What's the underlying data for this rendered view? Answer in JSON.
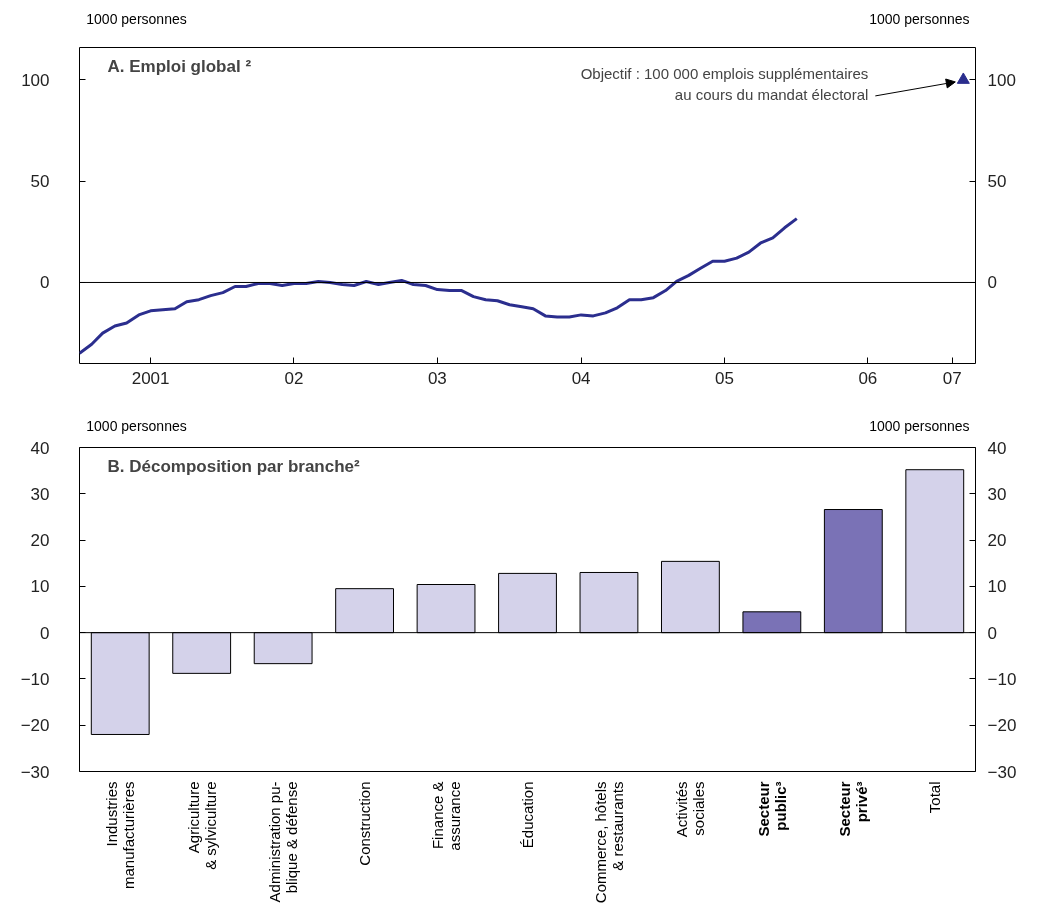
{
  "chart_data": [
    {
      "type": "line",
      "title": "A. Emploi global ²",
      "ylabel": "1000 personnes",
      "y2label": "1000 personnes",
      "xlim": [
        "2001-01",
        "2007-04"
      ],
      "xticks": [
        {
          "value": "2001-07",
          "label": "2001"
        },
        {
          "value": "2002-07",
          "label": "02"
        },
        {
          "value": "2003-07",
          "label": "03"
        },
        {
          "value": "2004-07",
          "label": "04"
        },
        {
          "value": "2005-07",
          "label": "05"
        },
        {
          "value": "2006-07",
          "label": "06"
        },
        {
          "value": "2007-02",
          "label": "07"
        }
      ],
      "ylim": [
        -40,
        116
      ],
      "yticks": [
        0,
        50,
        100
      ],
      "y2lim": [
        -40,
        116
      ],
      "y2ticks": [
        0,
        50,
        100
      ],
      "grid": false,
      "ref_lines": [
        {
          "axis": "y",
          "value": 0,
          "color": "#000000"
        }
      ],
      "annotations": [
        {
          "text": "Objectif : 100 000 emplois supplémentaires\nau cours du mandat électoral",
          "x": "2007-03",
          "y": 100
        }
      ],
      "series": [
        {
          "type": "line",
          "color": "#2b2e8e",
          "x": [
            "2001-01",
            "2001-02",
            "2001-03",
            "2001-04",
            "2001-05",
            "2001-06",
            "2001-07",
            "2001-08",
            "2001-09",
            "2001-10",
            "2001-11",
            "2001-12",
            "2002-01",
            "2002-02",
            "2002-03",
            "2002-04",
            "2002-05",
            "2002-06",
            "2002-07",
            "2002-08",
            "2002-09",
            "2002-10",
            "2002-11",
            "2002-12",
            "2003-01",
            "2003-02",
            "2003-03",
            "2003-04",
            "2003-05",
            "2003-06",
            "2003-07",
            "2003-08",
            "2003-09",
            "2003-10",
            "2003-11",
            "2003-12",
            "2004-01",
            "2004-02",
            "2004-03",
            "2004-04",
            "2004-05",
            "2004-06",
            "2004-07",
            "2004-08",
            "2004-09",
            "2004-10",
            "2004-11",
            "2004-12",
            "2005-01",
            "2005-02",
            "2005-03",
            "2005-04",
            "2005-05",
            "2005-06",
            "2005-07",
            "2005-08",
            "2005-09",
            "2005-10",
            "2005-11",
            "2005-12",
            "2006-01"
          ],
          "values": [
            -35,
            -30.5,
            -25,
            -21.5,
            -20,
            -16,
            -14,
            -13.5,
            -13,
            -9.5,
            -8.5,
            -6.5,
            -5,
            -2,
            -2,
            -0.5,
            -0.5,
            -1.5,
            -0.5,
            -0.5,
            0.5,
            0,
            -1,
            -1.5,
            0.5,
            -1,
            0,
            1,
            -1,
            -1.5,
            -3.5,
            -4,
            -4,
            -7,
            -8.5,
            -9,
            -11,
            -12,
            -13,
            -16.5,
            -17,
            -17,
            -16,
            -16.5,
            -15,
            -12.5,
            -8.5,
            -8.5,
            -7.5,
            -4,
            0.5,
            3.5,
            7,
            10.5,
            10.5,
            12,
            15,
            19.5,
            22,
            27,
            31.5
          ]
        },
        {
          "type": "scatter",
          "marker": "triangle",
          "color": "#2b2e8e",
          "x": [
            "2007-03"
          ],
          "values": [
            100
          ]
        }
      ]
    },
    {
      "type": "bar",
      "title": "B. Décomposition par branche²",
      "ylabel": "1000 personnes",
      "y2label": "1000 personnes",
      "categories": [
        "Industries\nmanufacturières",
        "Agriculture\n& sylviculture",
        "Administration pu-\nblique & défense",
        "Construction",
        "Finance &\nassurance",
        "Éducation",
        "Commerce, hôtels\n& restaurants",
        "Activités\nsociales",
        "Secteur\npublic³",
        "Secteur\nprivé³",
        "Total"
      ],
      "values": [
        -22,
        -8.8,
        -6.7,
        9.5,
        10.4,
        12.8,
        13,
        15.4,
        4.5,
        26.6,
        35.2
      ],
      "colors": [
        "#d4d2ea",
        "#d4d2ea",
        "#d4d2ea",
        "#d4d2ea",
        "#d4d2ea",
        "#d4d2ea",
        "#d4d2ea",
        "#d4d2ea",
        "#7a72b6",
        "#7a72b6",
        "#d4d2ea"
      ],
      "ylim": [
        -30,
        40
      ],
      "yticks": [
        -30,
        -20,
        -10,
        0,
        10,
        20,
        30,
        40
      ],
      "y2lim": [
        -30,
        40
      ],
      "y2ticks": [
        -30,
        -20,
        -10,
        0,
        10,
        20,
        30,
        40
      ],
      "grid": false,
      "ref_lines": [
        {
          "axis": "y",
          "value": 0,
          "color": "#000000"
        }
      ]
    }
  ]
}
